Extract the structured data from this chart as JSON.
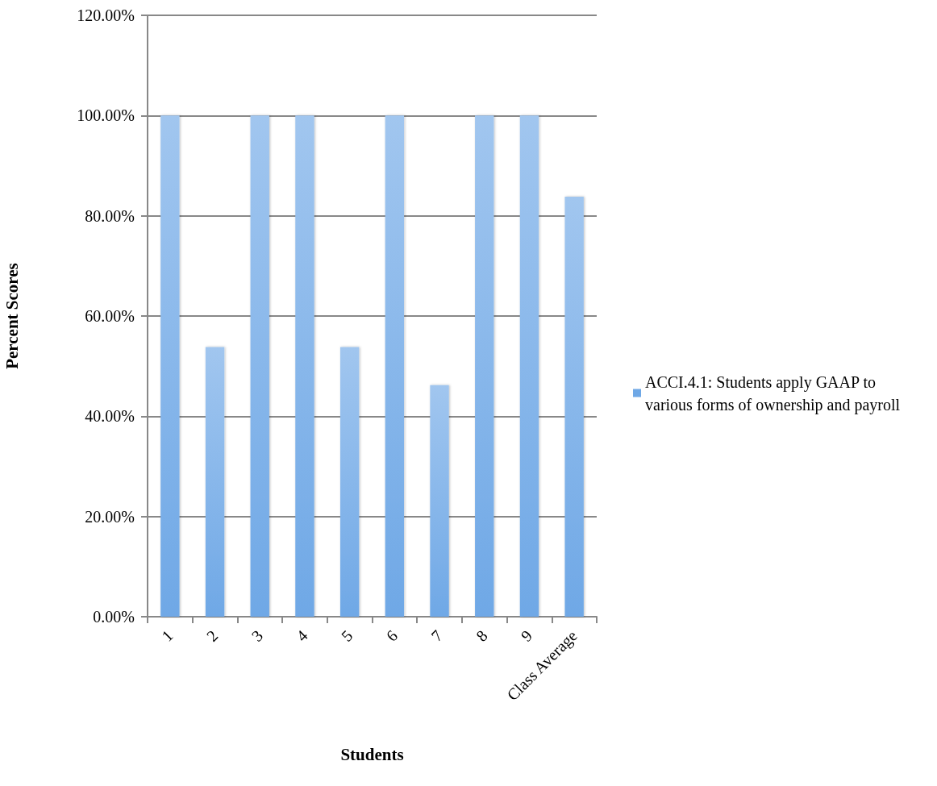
{
  "chart_data": {
    "type": "bar",
    "xlabel": "Students",
    "ylabel": "Percent Scores",
    "categories": [
      "1",
      "2",
      "3",
      "4",
      "5",
      "6",
      "7",
      "8",
      "9",
      "Class Average"
    ],
    "series": [
      {
        "name": "ACCI.4.1: Students apply GAAP to various forms of ownership and payroll",
        "color": "#6fa8e6",
        "values": [
          100,
          53.8,
          100,
          100,
          53.8,
          100,
          46.2,
          100,
          100,
          83.8
        ]
      }
    ],
    "ylim": [
      0,
      120
    ],
    "yticks": [
      {
        "value": 0,
        "label": "0.00%"
      },
      {
        "value": 20,
        "label": "20.00%"
      },
      {
        "value": 40,
        "label": "40.00%"
      },
      {
        "value": 60,
        "label": "60.00%"
      },
      {
        "value": 80,
        "label": "80.00%"
      },
      {
        "value": 100,
        "label": "100.00%"
      },
      {
        "value": 120,
        "label": "120.00%"
      }
    ],
    "grid": "y",
    "legend": "right"
  }
}
